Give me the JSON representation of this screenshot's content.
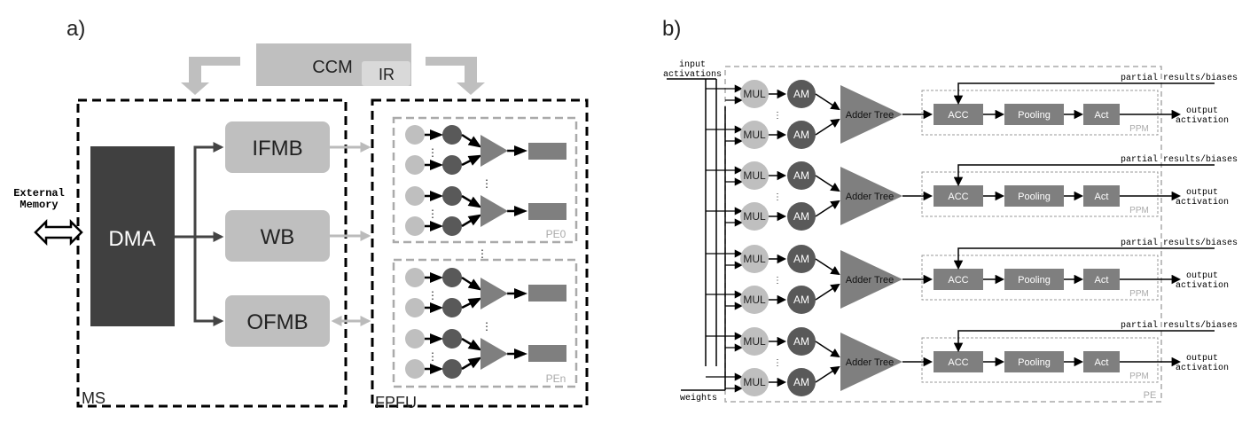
{
  "panel_a": {
    "label": "a)",
    "ccm": "CCM",
    "ir": "IR",
    "external_memory": "External\nMemory",
    "dma": "DMA",
    "ifmb": "IFMB",
    "wb": "WB",
    "ofmb": "OFMB",
    "ms": "MS",
    "fpfu": "FPFU",
    "pe0": "PE0",
    "pen": "PEn"
  },
  "panel_b": {
    "label": "b)",
    "input_activations": "input\nactivations",
    "weights": "weights",
    "partial": "partial results/biases",
    "output": "output\nactivation",
    "mul": "MUL",
    "am": "AM",
    "adder": "Adder Tree",
    "acc": "ACC",
    "pooling": "Pooling",
    "act": "Act",
    "ppm": "PPM",
    "pe": "PE"
  },
  "colors": {
    "dark": "#444444",
    "mid": "#7f7f7f",
    "light": "#bfbfbf",
    "dash": "#a6a6a6"
  }
}
